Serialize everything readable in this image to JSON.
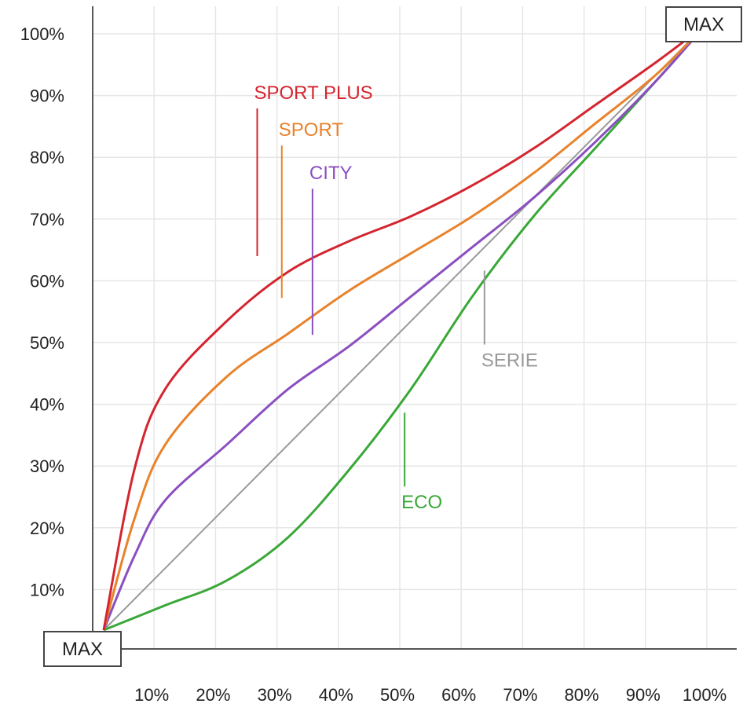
{
  "chart_data": {
    "type": "line",
    "xlim": [
      0,
      100
    ],
    "ylim": [
      0,
      100
    ],
    "grid": true,
    "x_ticks": [
      "10%",
      "20%",
      "30%",
      "40%",
      "50%",
      "60%",
      "70%",
      "80%",
      "90%",
      "100%"
    ],
    "y_ticks": [
      "10%",
      "20%",
      "30%",
      "40%",
      "50%",
      "60%",
      "70%",
      "80%",
      "90%",
      "100%"
    ],
    "origin_label": "MAX",
    "end_label": "MAX",
    "series": [
      {
        "name": "SPORT PLUS",
        "color": "#d4252f",
        "x": [
          0,
          5,
          10,
          20,
          30,
          40,
          50,
          60,
          70,
          80,
          90,
          98
        ],
        "y": [
          0,
          26,
          39,
          50,
          58,
          63,
          67,
          72,
          78,
          85,
          92,
          98
        ],
        "label_at": [
          25,
          86
        ]
      },
      {
        "name": "SPORT",
        "color": "#e8822b",
        "x": [
          0,
          5,
          10,
          20,
          30,
          40,
          50,
          60,
          70,
          80,
          90,
          98
        ],
        "y": [
          0,
          18,
          30,
          41,
          48,
          55,
          61,
          67,
          74,
          82,
          90,
          98
        ],
        "label_at": [
          29,
          80
        ]
      },
      {
        "name": "CITY",
        "color": "#8b4fc0",
        "x": [
          0,
          5,
          10,
          20,
          30,
          40,
          50,
          60,
          70,
          80,
          90,
          98
        ],
        "y": [
          0,
          12,
          21,
          30,
          39,
          46,
          54,
          62,
          70,
          79,
          89,
          98
        ],
        "label_at": [
          34,
          73
        ]
      },
      {
        "name": "SERIE",
        "color": "#9a9a9a",
        "x": [
          0,
          98
        ],
        "y": [
          0,
          98
        ],
        "label_at": [
          62,
          46
        ]
      },
      {
        "name": "ECO",
        "color": "#3aa838",
        "x": [
          0,
          10,
          20,
          30,
          40,
          50,
          60,
          70,
          80,
          90,
          98
        ],
        "y": [
          0,
          4,
          8,
          15,
          26,
          39,
          54,
          67,
          78,
          89,
          98
        ],
        "label_at": [
          49,
          23
        ]
      }
    ]
  }
}
